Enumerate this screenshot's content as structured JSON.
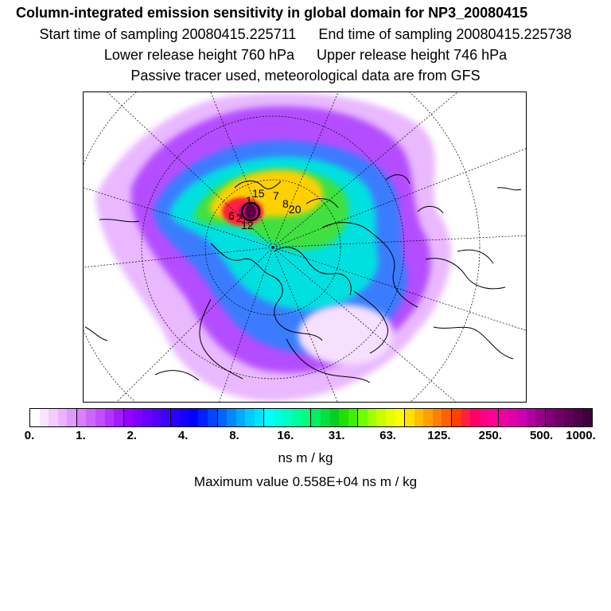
{
  "header": {
    "title": "Column-integrated emission sensitivity in global domain for NP3_20080415",
    "start_label": "Start time of sampling 20080415.225711",
    "end_label": "End time of sampling 20080415.225738",
    "lower_label": "Lower release height  760 hPa",
    "upper_label": "Upper release height  746 hPa",
    "tracer_line": "Passive tracer used, meteorological data are from GFS"
  },
  "map": {
    "projection": "north-polar-stereographic",
    "field": "emission sensitivity",
    "track_labels": [
      "15",
      "1",
      "7",
      "8",
      "20",
      "6",
      "12",
      "2"
    ],
    "colors": {
      "low": "#f3d9ff",
      "mid": "#00e5e5",
      "high": "#ff0066",
      "max": "#800040",
      "coast": "#000000"
    }
  },
  "colorbar": {
    "colors": [
      "#ffffff",
      "#f8e6ff",
      "#f0ccff",
      "#e8b3ff",
      "#e099ff",
      "#d880ff",
      "#cc66ff",
      "#c04dff",
      "#b333ff",
      "#a31aff",
      "#9900ff",
      "#8000ff",
      "#6a00ff",
      "#5500ff",
      "#4000ff",
      "#2b00ff",
      "#1500ff",
      "#0000ff",
      "#0022ff",
      "#0044ff",
      "#0066ff",
      "#0088ff",
      "#00aaff",
      "#00ccff",
      "#00e5ff",
      "#00ffff",
      "#00ffe0",
      "#00ffc0",
      "#00ffa0",
      "#00ff80",
      "#00f060",
      "#00e040",
      "#00d020",
      "#20e000",
      "#40f000",
      "#70ff00",
      "#a0ff00",
      "#c8ff00",
      "#e8ff00",
      "#ffff00",
      "#ffe000",
      "#ffc000",
      "#ffa000",
      "#ff8000",
      "#ff6000",
      "#ff4000",
      "#ff2040",
      "#ff0066",
      "#ff0080",
      "#ff0099",
      "#f000a0",
      "#e000a8",
      "#cc00b0",
      "#b000a0",
      "#98008c",
      "#800078",
      "#700066",
      "#600058",
      "#50004a",
      "#40003c"
    ],
    "tick_labels": [
      "0.",
      "1.",
      "2.",
      "4.",
      "8.",
      "16.",
      "31.",
      "63.",
      "125.",
      "250.",
      "500.",
      "1000."
    ],
    "units": "ns m / kg",
    "max_line": "Maximum value  0.558E+04 ns m / kg"
  }
}
